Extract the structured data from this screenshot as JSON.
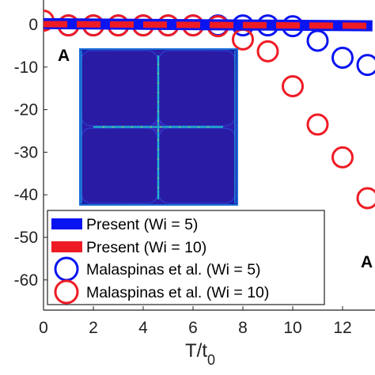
{
  "chart_data": {
    "type": "line",
    "xlabel": "T/t",
    "xlabel_sub": "0",
    "ylabel": "",
    "xlim": [
      0,
      13.2
    ],
    "ylim": [
      -66,
      2.5
    ],
    "xticks": [
      0,
      2,
      4,
      6,
      8,
      10,
      12
    ],
    "yticks": [
      0,
      -10,
      -20,
      -30,
      -40,
      -50,
      -60
    ],
    "grid": false,
    "legend_position": "bottom-left",
    "inset_label": "A",
    "side_label": "A",
    "colors": {
      "blue": "#0a14f0",
      "red": "#ee1b24"
    },
    "series": [
      {
        "name": "Present (Wi = 5)",
        "style": "solid-line",
        "color": "#0a14f0",
        "x": [
          0,
          13.2
        ],
        "y": [
          0.2,
          -0.3
        ]
      },
      {
        "name": "Present (Wi = 10)",
        "style": "dashed-line",
        "color": "#ee1b24",
        "x": [
          0,
          13.2
        ],
        "y": [
          0.1,
          -0.3
        ]
      },
      {
        "name": "Malaspinas et al. (Wi = 5)",
        "style": "open-circle",
        "color": "#0a14f0",
        "x": [
          1,
          2,
          3,
          4,
          5,
          6,
          7,
          8,
          9,
          10,
          11,
          12,
          13
        ],
        "y": [
          -0.2,
          -0.2,
          -0.2,
          -0.2,
          -0.2,
          -0.2,
          -0.2,
          -0.2,
          -0.2,
          -0.4,
          -3.8,
          -7.8,
          -9.5
        ]
      },
      {
        "name": "Malaspinas et al. (Wi = 10)",
        "style": "open-circle",
        "color": "#ee1b24",
        "x": [
          0,
          1,
          2,
          3,
          4,
          5,
          6,
          7,
          8,
          9,
          10,
          11,
          12,
          13
        ],
        "y": [
          0.9,
          -0.2,
          -0.2,
          -0.2,
          -0.2,
          -0.2,
          -0.2,
          -0.4,
          -3.5,
          -6.3,
          -14.5,
          -23.5,
          -31.2,
          -40.8
        ]
      }
    ]
  }
}
